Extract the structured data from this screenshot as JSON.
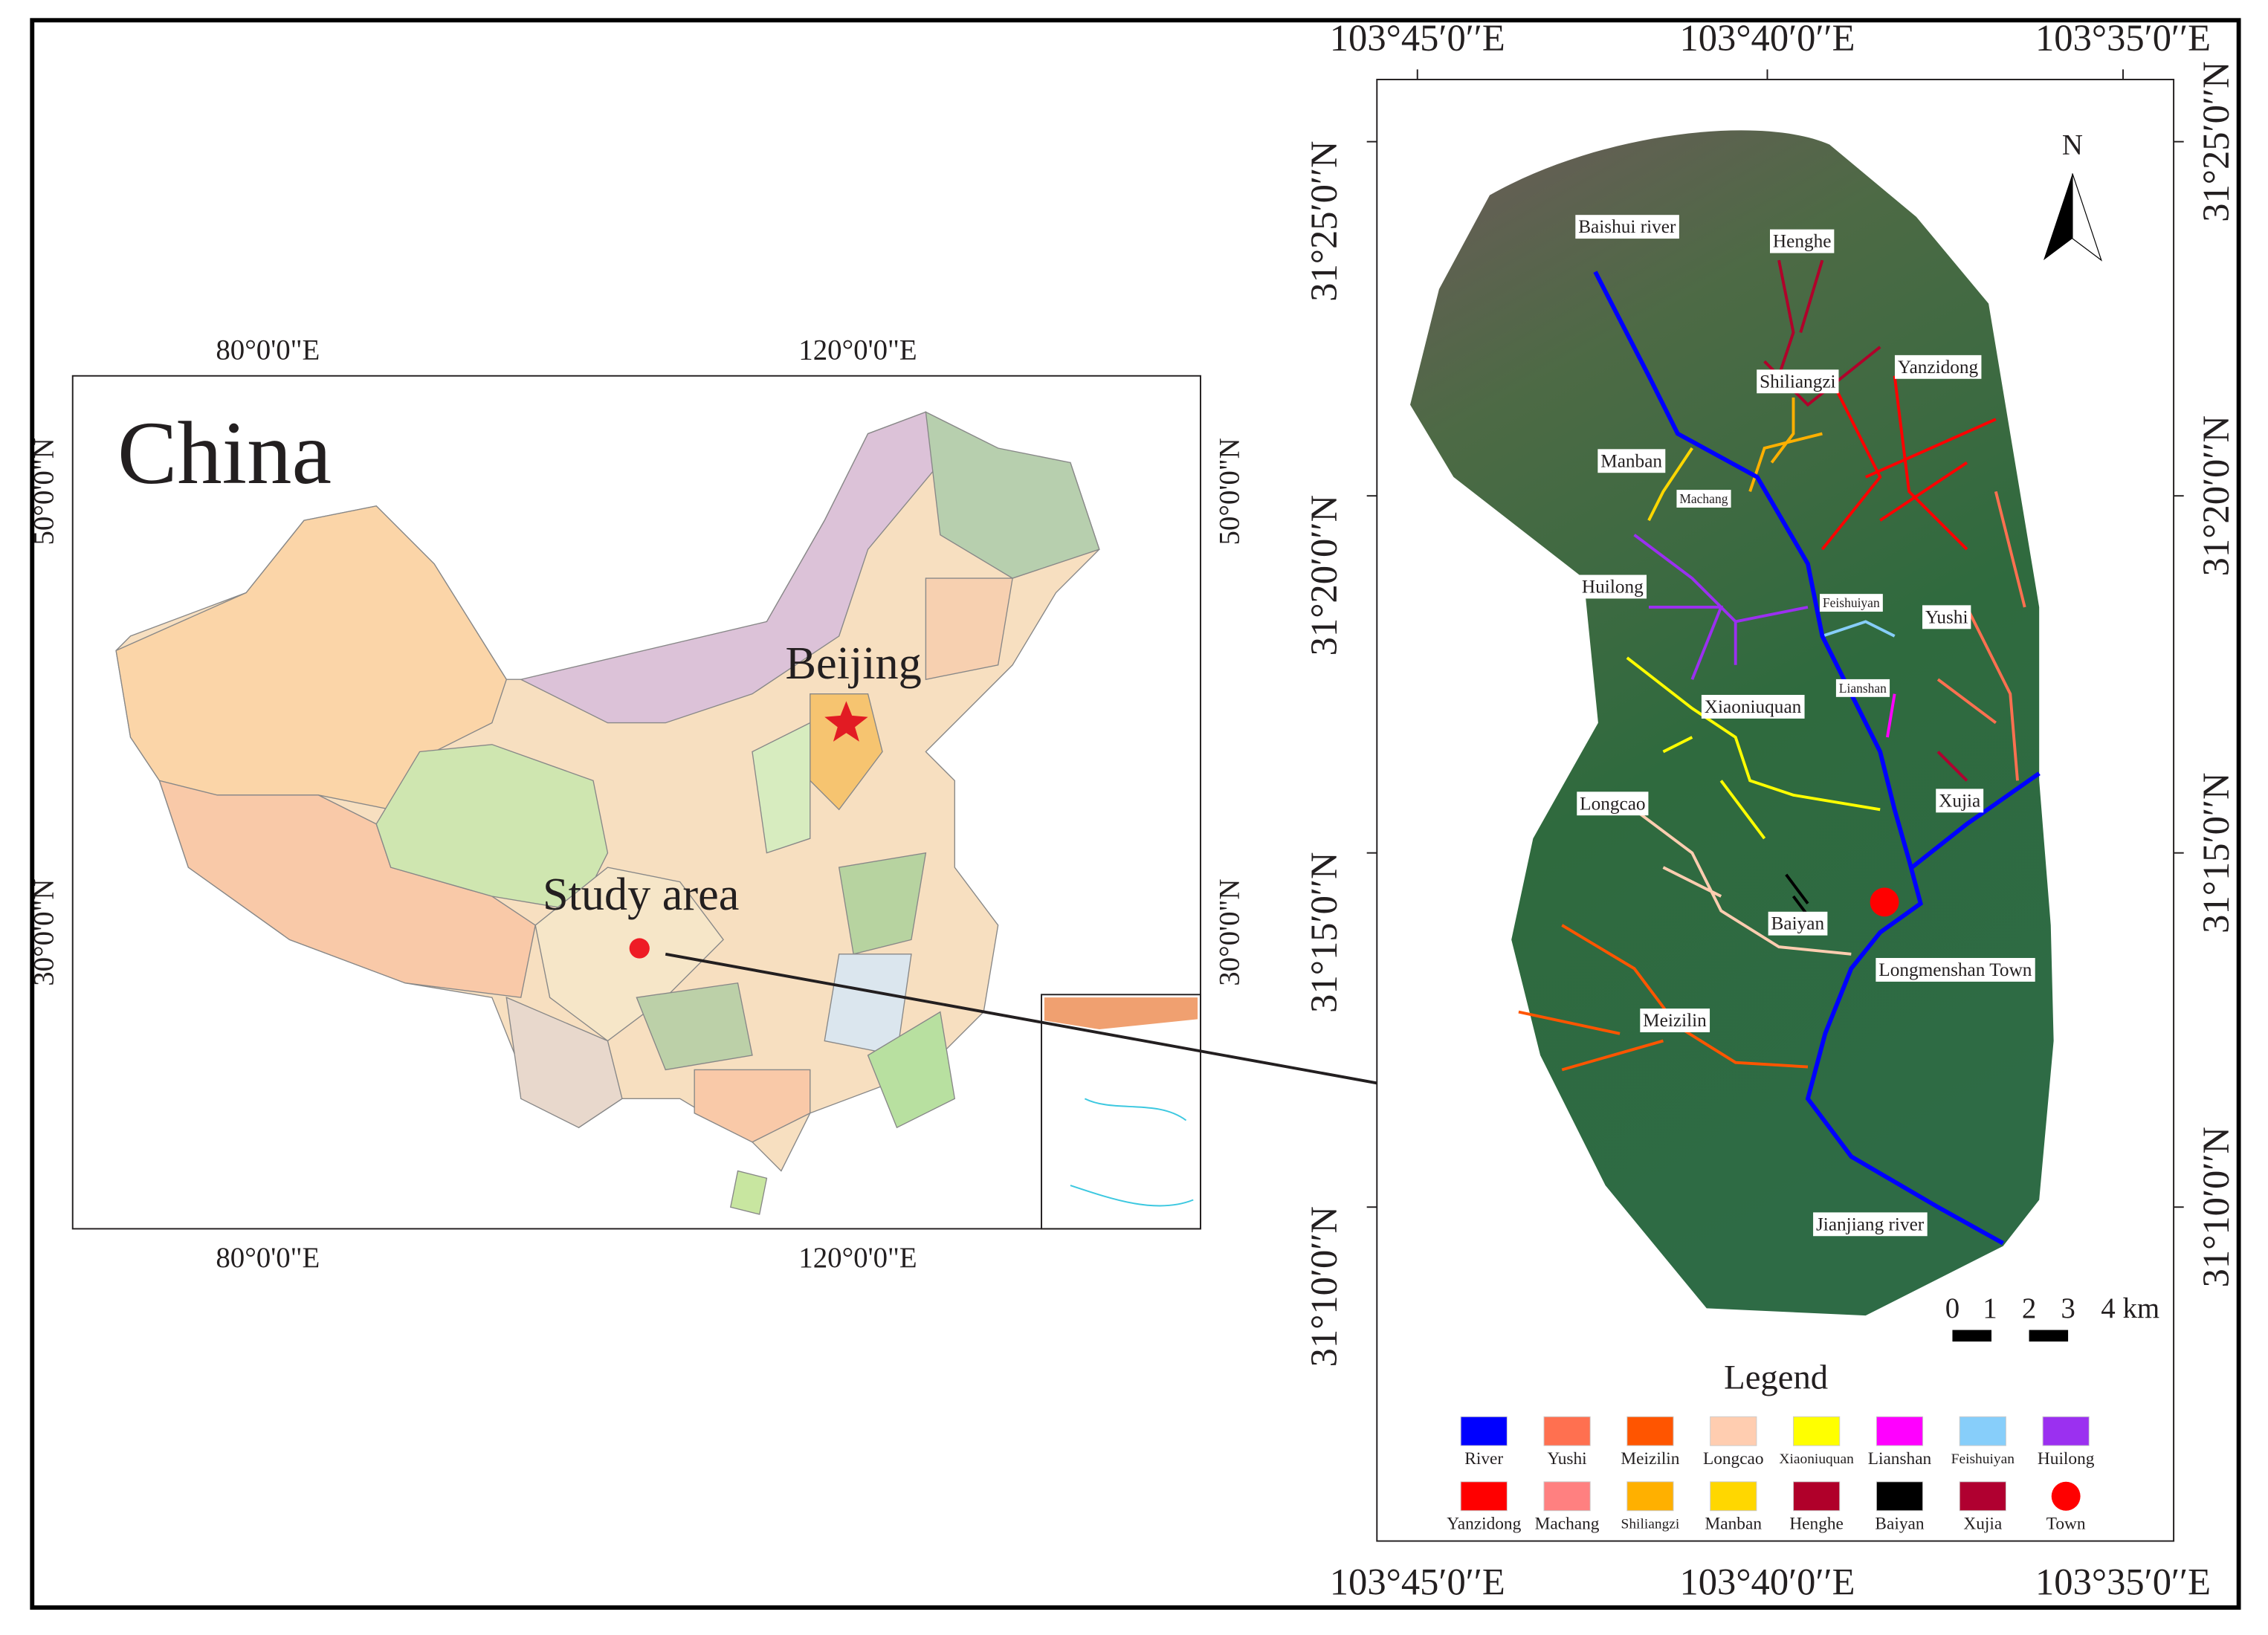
{
  "china_map": {
    "title": "China",
    "capital": "Beijing",
    "study_area": "Study area",
    "lon_labels_top": [
      "80°0'0\"E",
      "120°0'0\"E"
    ],
    "lon_labels_bottom": [
      "80°0'0\"E",
      "120°0'0\"E"
    ],
    "lat_labels_left": [
      "50°0'0\"N",
      "30°0'0\"N"
    ],
    "lat_labels_right": [
      "50°0'0\"N",
      "30°0'0\"N"
    ]
  },
  "study_map": {
    "lon_labels_top": [
      "103°45′0′′E",
      "103°40′0′′E",
      "103°35′0′′E"
    ],
    "lon_labels_bottom": [
      "103°45′0′′E",
      "103°40′0′′E",
      "103°35′0′′E"
    ],
    "lat_labels_left": [
      "31°25′0′′N",
      "31°20′0′′N",
      "31°15′0′′N",
      "31°10′0′′N"
    ],
    "lat_labels_right": [
      "31°25′0′′N",
      "31°20′0′′N",
      "31°15′0′′N",
      "31°10′0′′N"
    ],
    "north": "N",
    "place_labels": [
      "Baishui river",
      "Henghe",
      "Shiliangzi",
      "Yanzidong",
      "Manban",
      "Machang",
      "Huilong",
      "Feishuiyan",
      "Yushi",
      "Lianshan",
      "Xiaoniuquan",
      "Longcao",
      "Xujia",
      "Baiyan",
      "Longmenshan Town",
      "Meizilin",
      "Jianjiang river"
    ],
    "scale_bar": [
      "0",
      "1",
      "2",
      "3",
      "4 km"
    ]
  },
  "legend": {
    "title": "Legend",
    "items": [
      {
        "label": "River",
        "color": "#0000ff"
      },
      {
        "label": "Yushi",
        "color": "#ff7050"
      },
      {
        "label": "Meizilin",
        "color": "#ff5500"
      },
      {
        "label": "Longcao",
        "color": "#ffcdb0"
      },
      {
        "label": "Xiaoniuquan",
        "color": "#ffff00"
      },
      {
        "label": "Lianshan",
        "color": "#ff00ff"
      },
      {
        "label": "Feishuiyan",
        "color": "#87cefa"
      },
      {
        "label": "Huilong",
        "color": "#9b30f0"
      },
      {
        "label": "Yanzidong",
        "color": "#ff0000"
      },
      {
        "label": "Machang",
        "color": "#ff8080"
      },
      {
        "label": "Shiliangzi",
        "color": "#ffb000"
      },
      {
        "label": "Manban",
        "color": "#ffd700"
      },
      {
        "label": "Henghe",
        "color": "#b0002a"
      },
      {
        "label": "Baiyan",
        "color": "#000000"
      },
      {
        "label": "Xujia",
        "color": "#b00030"
      },
      {
        "label": "Town",
        "color": "#ff0000"
      }
    ]
  }
}
